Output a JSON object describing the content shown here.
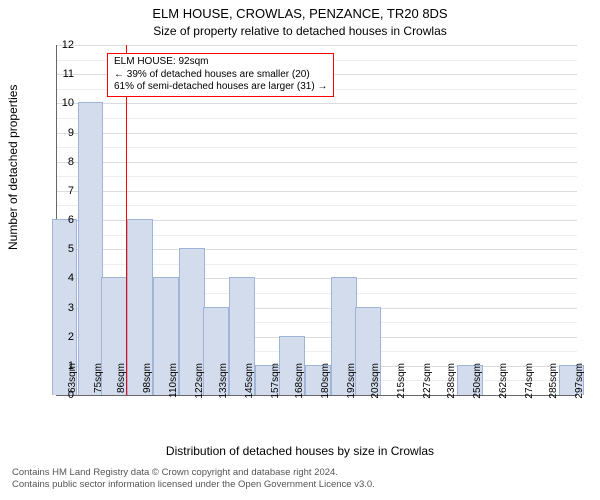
{
  "chart": {
    "type": "histogram",
    "title": "ELM HOUSE, CROWLAS, PENZANCE, TR20 8DS",
    "subtitle": "Size of property relative to detached houses in Crowlas",
    "xlabel": "Distribution of detached houses by size in Crowlas",
    "ylabel": "Number of detached properties",
    "ylim": [
      0,
      12
    ],
    "ytick_step": 1,
    "background_color": "#ffffff",
    "grid_color": "#d9dde2",
    "minor_grid_color": "#eceef1",
    "bar_color": "#d2dcec",
    "bar_edge": "#9fb4d6",
    "refline_color": "#ff0000",
    "refline_x": 92,
    "x_start": 60,
    "x_end": 300,
    "bin_width": 12,
    "categories": [
      "63sqm",
      "75sqm",
      "86sqm",
      "98sqm",
      "110sqm",
      "122sqm",
      "133sqm",
      "145sqm",
      "157sqm",
      "168sqm",
      "180sqm",
      "192sqm",
      "203sqm",
      "215sqm",
      "227sqm",
      "238sqm",
      "250sqm",
      "262sqm",
      "274sqm",
      "285sqm",
      "297sqm"
    ],
    "x_ticks": [
      63,
      75,
      86,
      98,
      110,
      122,
      133,
      145,
      157,
      168,
      180,
      192,
      203,
      215,
      227,
      238,
      250,
      262,
      274,
      285,
      297
    ],
    "values": [
      6,
      10,
      4,
      6,
      4,
      5,
      3,
      4,
      1,
      2,
      1,
      4,
      3,
      0,
      0,
      0,
      1,
      0,
      0,
      0,
      1
    ],
    "title_fontsize": 13,
    "subtitle_fontsize": 12,
    "label_fontsize": 12,
    "tick_fontsize": 11,
    "annotation": {
      "line1": "ELM HOUSE: 92sqm",
      "line2": "← 39% of detached houses are smaller (20)",
      "line3": "61% of semi-detached houses are larger (31) →",
      "border_color": "#ff0000"
    }
  },
  "footer": {
    "line1": "Contains HM Land Registry data © Crown copyright and database right 2024.",
    "line2": "Contains public sector information licensed under the Open Government Licence v3.0."
  }
}
